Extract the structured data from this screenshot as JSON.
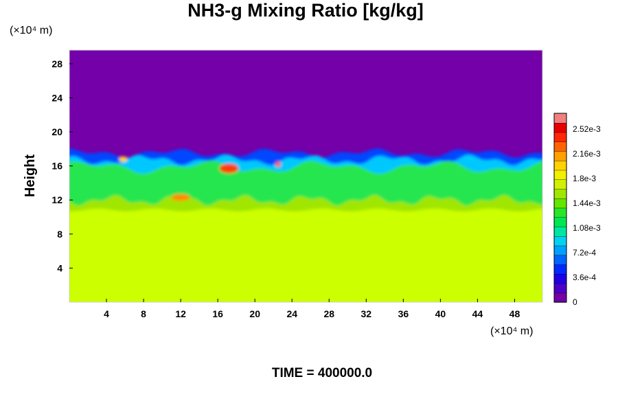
{
  "chart_data": {
    "type": "heatmap",
    "title": "NH3-g Mixing Ratio [kg/kg]",
    "xlabel": "",
    "ylabel": "Height",
    "x_unit": "(×10⁴ m)",
    "y_unit": "(×10⁴ m)",
    "x_ticks": [
      4,
      8,
      12,
      16,
      20,
      24,
      28,
      32,
      36,
      40,
      44,
      48
    ],
    "y_ticks": [
      4,
      8,
      12,
      16,
      20,
      24,
      28
    ],
    "xlim": [
      0,
      51
    ],
    "ylim": [
      0,
      29.6
    ],
    "footer": "TIME = 400000.0",
    "colorbar": {
      "min": 0,
      "max": 0.00275,
      "labels": [
        "0",
        "3.6e-4",
        "7.2e-4",
        "1.08e-3",
        "1.44e-3",
        "1.8e-3",
        "2.16e-3",
        "2.52e-3"
      ],
      "label_values": [
        0,
        0.00036,
        0.00072,
        0.00108,
        0.00144,
        0.0018,
        0.00216,
        0.00252
      ],
      "colors": [
        "#7300a8",
        "#4b00c8",
        "#1e00e6",
        "#0028ff",
        "#0064ff",
        "#00a0ff",
        "#00d2f0",
        "#00e6a0",
        "#00e650",
        "#28e628",
        "#64e600",
        "#a0e600",
        "#d2f000",
        "#f0f000",
        "#ffd200",
        "#ffa000",
        "#ff6400",
        "#ff2800",
        "#e60000",
        "#f08080"
      ]
    },
    "fields": {
      "background": "#7300a8",
      "lower_layer": "#ccff00",
      "lower_layer_top": 10.5,
      "upper_layer_top": 17.5
    }
  }
}
